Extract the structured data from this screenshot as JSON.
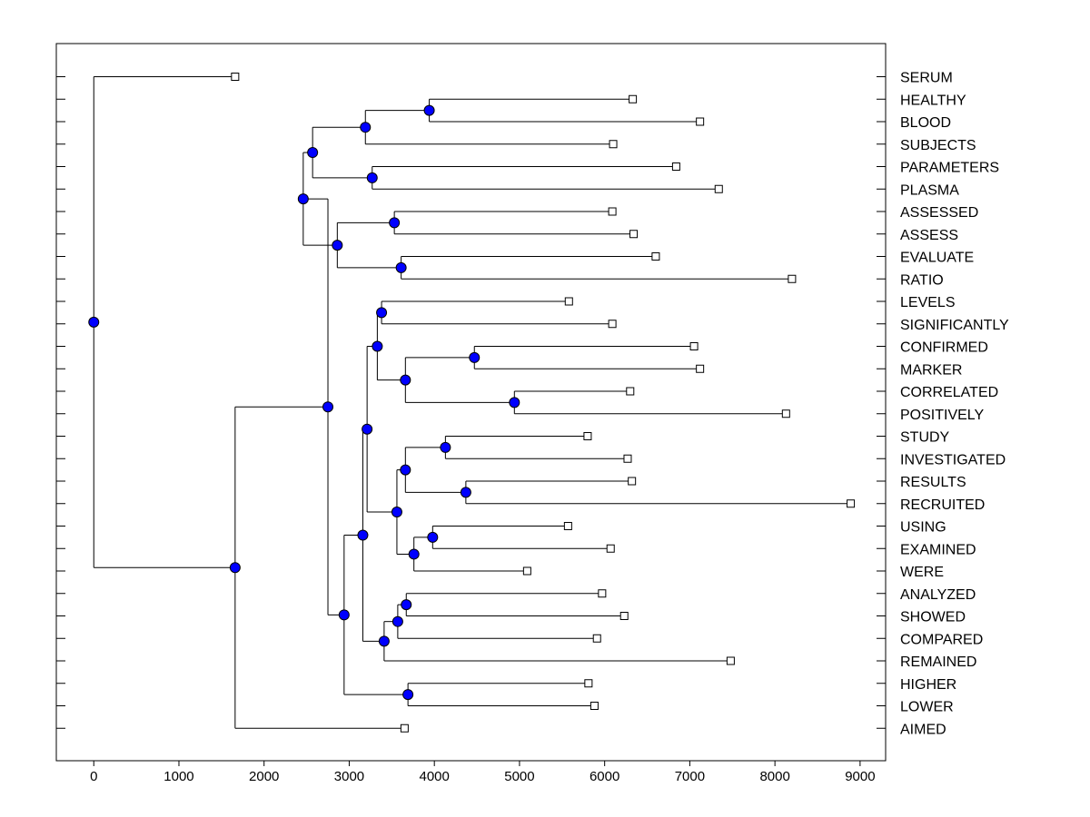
{
  "chart_data": {
    "type": "dendrogram",
    "title": "",
    "xlabel": "",
    "ylabel": "",
    "xlim": [
      -440,
      9300
    ],
    "x_ticks": [
      0,
      1000,
      2000,
      3000,
      4000,
      5000,
      6000,
      7000,
      8000,
      9000
    ],
    "grid": false,
    "colors": {
      "node": "#0000ff",
      "line": "#000000",
      "leaf_fill": "#ffffff"
    },
    "leaves": [
      {
        "label": "SERUM",
        "x": 1660
      },
      {
        "label": "HEALTHY",
        "x": 6330
      },
      {
        "label": "BLOOD",
        "x": 7120
      },
      {
        "label": "SUBJECTS",
        "x": 6100
      },
      {
        "label": "PARAMETERS",
        "x": 6840
      },
      {
        "label": "PLASMA",
        "x": 7340
      },
      {
        "label": "ASSESSED",
        "x": 6090
      },
      {
        "label": "ASSESS",
        "x": 6340
      },
      {
        "label": "EVALUATE",
        "x": 6600
      },
      {
        "label": "RATIO",
        "x": 8200
      },
      {
        "label": "LEVELS",
        "x": 5580
      },
      {
        "label": "SIGNIFICANTLY",
        "x": 6090
      },
      {
        "label": "CONFIRMED",
        "x": 7050
      },
      {
        "label": "MARKER",
        "x": 7120
      },
      {
        "label": "CORRELATED",
        "x": 6300
      },
      {
        "label": "POSITIVELY",
        "x": 8130
      },
      {
        "label": "STUDY",
        "x": 5800
      },
      {
        "label": "INVESTIGATED",
        "x": 6270
      },
      {
        "label": "RESULTS",
        "x": 6320
      },
      {
        "label": "RECRUITED",
        "x": 8890
      },
      {
        "label": "USING",
        "x": 5570
      },
      {
        "label": "EXAMINED",
        "x": 6070
      },
      {
        "label": "WERE",
        "x": 5090
      },
      {
        "label": "ANALYZED",
        "x": 5970
      },
      {
        "label": "SHOWED",
        "x": 6230
      },
      {
        "label": "COMPARED",
        "x": 5910
      },
      {
        "label": "REMAINED",
        "x": 7480
      },
      {
        "label": "HIGHER",
        "x": 5810
      },
      {
        "label": "LOWER",
        "x": 5880
      },
      {
        "label": "AIMED",
        "x": 3650
      }
    ],
    "merges": [
      {
        "id": "n1",
        "x": 3940,
        "children": [
          "HEALTHY",
          "BLOOD"
        ]
      },
      {
        "id": "n2",
        "x": 3190,
        "children": [
          "n1",
          "SUBJECTS"
        ]
      },
      {
        "id": "n3",
        "x": 3270,
        "children": [
          "PARAMETERS",
          "PLASMA"
        ]
      },
      {
        "id": "n4",
        "x": 2570,
        "children": [
          "n2",
          "n3"
        ]
      },
      {
        "id": "n5",
        "x": 3530,
        "children": [
          "ASSESSED",
          "ASSESS"
        ]
      },
      {
        "id": "n6",
        "x": 3610,
        "children": [
          "EVALUATE",
          "RATIO"
        ]
      },
      {
        "id": "n7",
        "x": 2860,
        "children": [
          "n5",
          "n6"
        ]
      },
      {
        "id": "n8",
        "x": 2460,
        "children": [
          "n4",
          "n7"
        ]
      },
      {
        "id": "n9",
        "x": 3380,
        "children": [
          "LEVELS",
          "SIGNIFICANTLY"
        ]
      },
      {
        "id": "n10",
        "x": 4470,
        "children": [
          "CONFIRMED",
          "MARKER"
        ]
      },
      {
        "id": "n11",
        "x": 4940,
        "children": [
          "CORRELATED",
          "POSITIVELY"
        ]
      },
      {
        "id": "n12",
        "x": 3660,
        "children": [
          "n10",
          "n11"
        ]
      },
      {
        "id": "n13",
        "x": 3330,
        "children": [
          "n9",
          "n12"
        ]
      },
      {
        "id": "n14",
        "x": 4130,
        "children": [
          "STUDY",
          "INVESTIGATED"
        ]
      },
      {
        "id": "n15",
        "x": 4370,
        "children": [
          "RESULTS",
          "RECRUITED"
        ]
      },
      {
        "id": "n16",
        "x": 3660,
        "children": [
          "n14",
          "n15"
        ]
      },
      {
        "id": "n17",
        "x": 3980,
        "children": [
          "USING",
          "EXAMINED"
        ]
      },
      {
        "id": "n18",
        "x": 3760,
        "children": [
          "n17",
          "WERE"
        ]
      },
      {
        "id": "n19",
        "x": 3560,
        "children": [
          "n16",
          "n18"
        ]
      },
      {
        "id": "n20",
        "x": 3210,
        "children": [
          "n13",
          "n19"
        ]
      },
      {
        "id": "n21",
        "x": 3670,
        "children": [
          "ANALYZED",
          "SHOWED"
        ]
      },
      {
        "id": "n22",
        "x": 3570,
        "children": [
          "n21",
          "COMPARED"
        ]
      },
      {
        "id": "n23",
        "x": 3410,
        "children": [
          "n22",
          "REMAINED"
        ]
      },
      {
        "id": "n24",
        "x": 3160,
        "children": [
          "n20",
          "n23"
        ]
      },
      {
        "id": "n25",
        "x": 3690,
        "children": [
          "HIGHER",
          "LOWER"
        ]
      },
      {
        "id": "n26",
        "x": 2940,
        "children": [
          "n24",
          "n25"
        ]
      },
      {
        "id": "n27",
        "x": 2750,
        "children": [
          "n8",
          "n26"
        ]
      },
      {
        "id": "n28",
        "x": 1660,
        "children": [
          "n27",
          "AIMED"
        ]
      },
      {
        "id": "n29",
        "x": 0,
        "children": [
          "SERUM",
          "n28"
        ]
      }
    ]
  }
}
